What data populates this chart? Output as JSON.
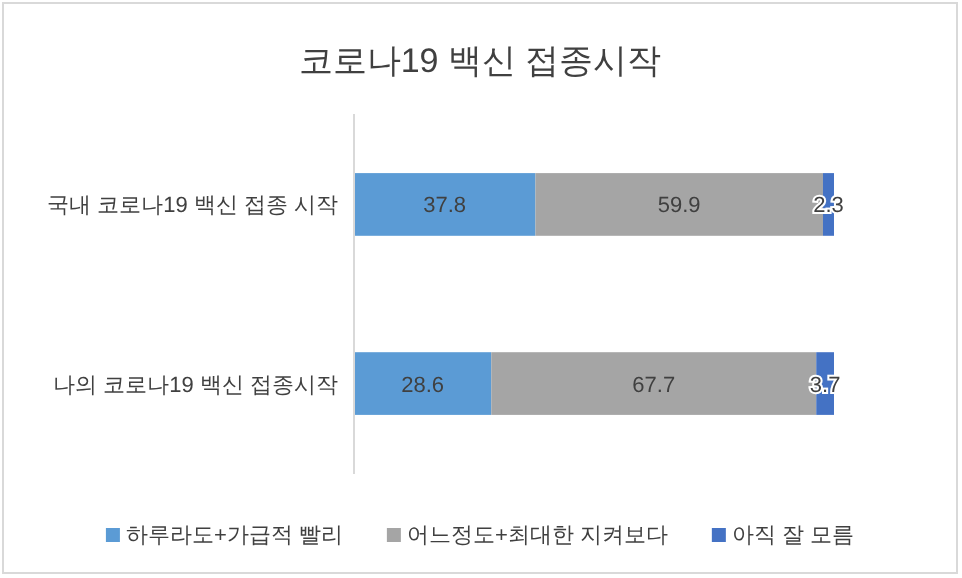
{
  "chart_data": {
    "type": "bar",
    "orientation": "horizontal",
    "stacked": true,
    "title": "코로나19 백신 접종시작",
    "categories": [
      "국내 코로나19 백신 접종 시작",
      "나의 코로나19 백신 접종시작"
    ],
    "series": [
      {
        "name": "하루라도+가급적 빨리",
        "color": "#5b9bd5",
        "values": [
          37.8,
          28.6
        ]
      },
      {
        "name": "어느정도+최대한 지켜보다",
        "color": "#a5a5a5",
        "values": [
          59.9,
          67.7
        ]
      },
      {
        "name": "아직 잘 모름",
        "color": "#4472c4",
        "values": [
          2.3,
          3.7
        ]
      }
    ],
    "data_labels": true,
    "legend": "bottom"
  }
}
